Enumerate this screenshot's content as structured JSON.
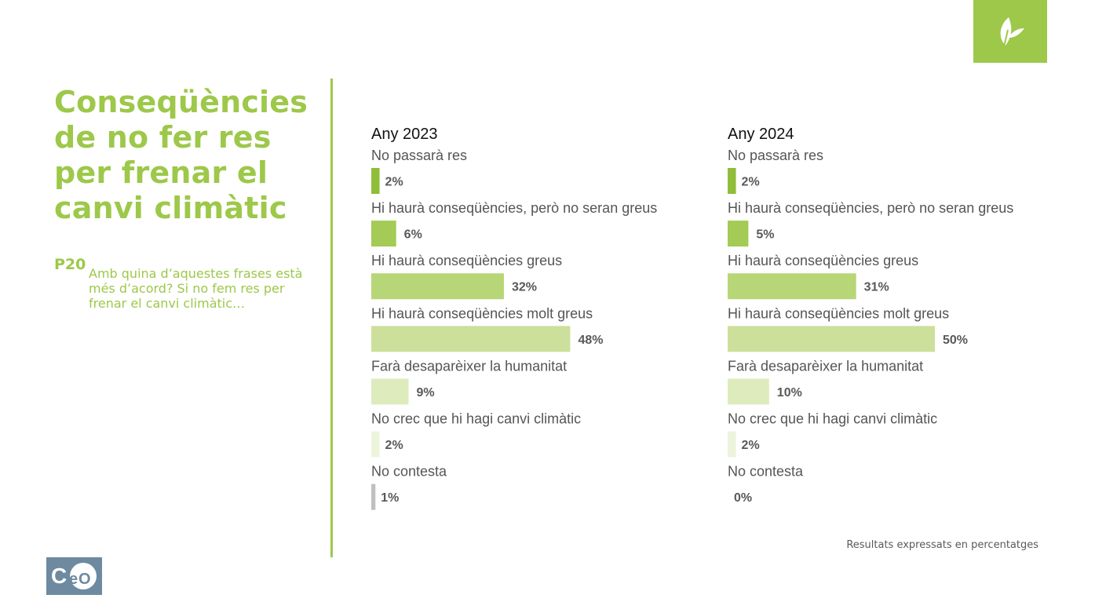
{
  "header": {
    "title": "Conseqüències de no fer res per frenar el canvi climàtic",
    "question_code": "P20",
    "question_text": "Amb quina d’aquestes frases està més d’acord? Si no fem res per frenar el canvi climàtic…"
  },
  "icons": {
    "badge": "leaf-icon",
    "logo": "ceo-logo"
  },
  "colors": {
    "accent": "#9dc84a",
    "bar_shades": [
      "#8fbe3a",
      "#a3cb55",
      "#b7d677",
      "#cde09b",
      "#deebbd",
      "#edf4dc",
      "#bfbfbf"
    ]
  },
  "footer": {
    "note": "Resultats expressats en percentatges",
    "logo_text": "CeO"
  },
  "chart_data": [
    {
      "type": "bar",
      "orientation": "horizontal",
      "title": "Any 2023",
      "categories": [
        "No passarà res",
        "Hi haurà conseqüències, però no seran greus",
        "Hi haurà conseqüències greus",
        "Hi haurà conseqüències molt greus",
        "Farà desaparèixer la humanitat",
        "No crec que hi hagi canvi climàtic",
        "No contesta"
      ],
      "values": [
        2,
        6,
        32,
        48,
        9,
        2,
        1
      ],
      "value_labels": [
        "2%",
        "6%",
        "32%",
        "48%",
        "9%",
        "2%",
        "1%"
      ],
      "xlim": [
        0,
        100
      ],
      "grid": false
    },
    {
      "type": "bar",
      "orientation": "horizontal",
      "title": "Any 2024",
      "categories": [
        "No passarà res",
        "Hi haurà conseqüències, però no seran greus",
        "Hi haurà conseqüències greus",
        "Hi haurà conseqüències molt greus",
        "Farà desaparèixer la humanitat",
        "No crec que hi hagi canvi climàtic",
        "No contesta"
      ],
      "values": [
        2,
        5,
        31,
        50,
        10,
        2,
        0
      ],
      "value_labels": [
        "2%",
        "5%",
        "31%",
        "50%",
        "10%",
        "2%",
        "0%"
      ],
      "xlim": [
        0,
        100
      ],
      "grid": false
    }
  ]
}
